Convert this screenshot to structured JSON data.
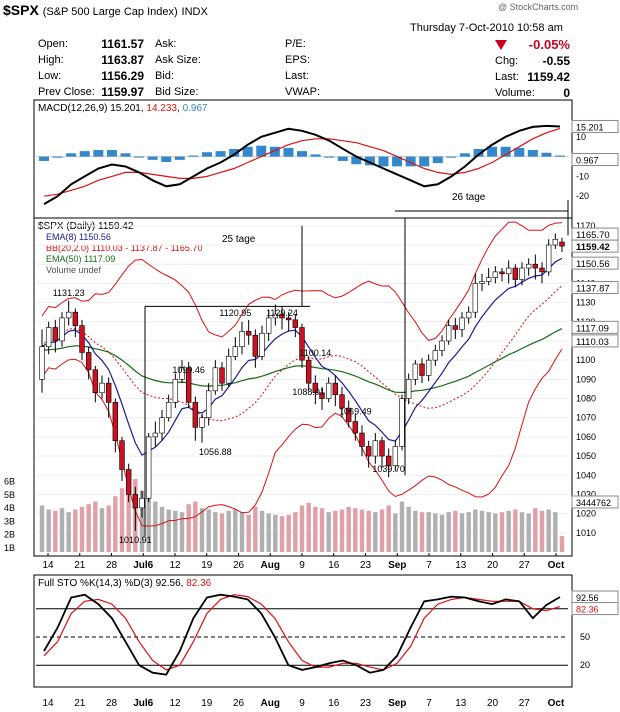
{
  "header": {
    "symbol": "$SPX",
    "name": "(S&P 500 Large Cap Index)",
    "exchange": "INDX",
    "watermark": "@ StockCharts.com",
    "datetime": "Thursday  7-Oct-2010  10:58 am",
    "change_pct": "-0.05%",
    "quotes": [
      {
        "label": "Open:",
        "value": "1161.57"
      },
      {
        "label": "High:",
        "value": "1163.87"
      },
      {
        "label": "Low:",
        "value": "1156.29"
      },
      {
        "label": "Prev Close:",
        "value": "1159.97"
      }
    ],
    "mid_labels": [
      "Ask:",
      "Ask Size:",
      "Bid:",
      "Bid Size:"
    ],
    "right_labels": [
      "P/E:",
      "EPS:",
      "Last:",
      "VWAP:"
    ],
    "stats": [
      {
        "label": "Chg:",
        "value": "-0.55"
      },
      {
        "label": "Last:",
        "value": "1159.42"
      },
      {
        "label": "Volume:",
        "value": "0"
      }
    ]
  },
  "colors": {
    "up": "#ffffff",
    "down": "#cc1122",
    "macd_hist": "#3388cc",
    "ema8": "#1a1a9a",
    "bb": "#dd1111",
    "ema50": "#1a6a1a",
    "volume_gray": "#b0b0b0",
    "volume_red": "#e0a0a8",
    "tag_line": "#000000",
    "sto_k": "#000000",
    "sto_d": "#dd1111",
    "change_neg": "#cc0022"
  },
  "chart_data": [
    {
      "type": "line",
      "panel": "macd",
      "title": "MACD(12,26,9) 15.201, 14.233, 0.967",
      "title_parts": [
        "MACD(12,26,9) ",
        "15.201",
        ", ",
        "14.233",
        ", ",
        "0.967"
      ],
      "ylim": [
        -30,
        22
      ],
      "ticks": [
        10,
        0,
        -10,
        -20
      ],
      "last_values": [
        "15.201",
        "0.967"
      ],
      "macd": [
        -24,
        -20,
        -14,
        -10,
        -6,
        -4,
        -5,
        -8,
        -12,
        -15,
        -14,
        -10,
        -6,
        -3,
        1,
        6,
        10,
        12,
        14,
        13,
        11,
        8,
        4,
        0,
        -3,
        -6,
        -9,
        -12,
        -15,
        -14,
        -10,
        -5,
        1,
        6,
        10,
        13,
        15,
        15.5,
        15.2
      ],
      "signal": [
        -20,
        -19,
        -17,
        -15,
        -12,
        -10,
        -8,
        -8,
        -9,
        -10,
        -11,
        -11,
        -10,
        -8,
        -6,
        -3,
        0,
        3,
        6,
        8,
        9,
        9,
        8,
        7,
        5,
        3,
        0,
        -3,
        -6,
        -8,
        -9,
        -8,
        -6,
        -3,
        1,
        5,
        9,
        12,
        14.2
      ],
      "histogram": [
        -4,
        -1,
        3,
        5,
        6,
        6,
        3,
        0,
        -3,
        -5,
        -3,
        1,
        4,
        5,
        7,
        9,
        10,
        9,
        8,
        5,
        2,
        -1,
        -4,
        -7,
        -8,
        -9,
        -9,
        -9,
        -9,
        -6,
        -1,
        3,
        7,
        9,
        9,
        8,
        6,
        3.5,
        0.967
      ]
    },
    {
      "type": "bar",
      "panel": "price",
      "title": "$SPX (Daily) 1159.42",
      "legend": [
        {
          "text": "EMA(8) 1150.56",
          "color_key": "ema8"
        },
        {
          "text": "BB(20,2.0) 1110.03 - 1137.87 - 1165.70",
          "color_key": "bb"
        },
        {
          "text": "EMA(50) 1117.09",
          "color_key": "ema50"
        },
        {
          "text": "Volume undef",
          "color_key": "volume_gray"
        }
      ],
      "ylim": [
        1000,
        1172
      ],
      "yticks": [
        1170,
        1160,
        1150,
        1140,
        1130,
        1120,
        1110,
        1100,
        1090,
        1080,
        1070,
        1060,
        1050,
        1040,
        1030,
        1020,
        1010
      ],
      "volume_ticks": [
        "6B",
        "5B",
        "4B",
        "3B",
        "2B",
        "1B"
      ],
      "value_tags": [
        {
          "text": "1165.70",
          "value": 1165.7
        },
        {
          "text": "1159.42",
          "value": 1159.42,
          "bold": true
        },
        {
          "text": "1150.56",
          "value": 1150.56
        },
        {
          "text": "1137.87",
          "value": 1137.87
        },
        {
          "text": "1117.09",
          "value": 1117.09
        },
        {
          "text": "1110.03",
          "value": 1110.03
        }
      ],
      "x_labels": [
        "14",
        "21",
        "28",
        "Jul6",
        "12",
        "19",
        "26",
        "Aug",
        "9",
        "16",
        "23",
        "Sep",
        "7",
        "13",
        "20",
        "27",
        "Oct"
      ],
      "annotations": [
        {
          "text": "1131.23",
          "value": 1131.23
        },
        {
          "text": "1099.46",
          "value": 1099.46
        },
        {
          "text": "1120.95",
          "value": 1120.95
        },
        {
          "text": "1129.24",
          "value": 1129.24
        },
        {
          "text": "1100.14",
          "value": 1100.14
        },
        {
          "text": "1088.01",
          "value": 1088.01
        },
        {
          "text": "1069.49",
          "value": 1069.49
        },
        {
          "text": "1056.88",
          "value": 1056.88
        },
        {
          "text": "1039.70",
          "value": 1039.7
        },
        {
          "text": "1010.91",
          "value": 1010.91
        }
      ],
      "tag_notes": [
        "25 tage",
        "26 tage"
      ],
      "candles": [
        [
          1090,
          1107,
          1083,
          1116
        ],
        [
          1107,
          1117,
          1103,
          1120
        ],
        [
          1117,
          1110,
          1104,
          1121
        ],
        [
          1110,
          1122,
          1107,
          1125
        ],
        [
          1122,
          1125,
          1118,
          1131
        ],
        [
          1125,
          1118,
          1112,
          1127
        ],
        [
          1118,
          1104,
          1100,
          1121
        ],
        [
          1104,
          1095,
          1090,
          1107
        ],
        [
          1095,
          1083,
          1078,
          1097
        ],
        [
          1083,
          1088,
          1080,
          1092
        ],
        [
          1088,
          1078,
          1070,
          1091
        ],
        [
          1078,
          1058,
          1052,
          1080
        ],
        [
          1058,
          1043,
          1037,
          1060
        ],
        [
          1043,
          1030,
          1026,
          1046
        ],
        [
          1030,
          1023,
          1011,
          1034
        ],
        [
          1023,
          1028,
          1018,
          1032
        ],
        [
          1028,
          1060,
          1026,
          1062
        ],
        [
          1060,
          1062,
          1055,
          1068
        ],
        [
          1062,
          1070,
          1058,
          1074
        ],
        [
          1070,
          1078,
          1068,
          1082
        ],
        [
          1078,
          1090,
          1075,
          1093
        ],
        [
          1090,
          1096,
          1088,
          1100
        ],
        [
          1096,
          1078,
          1075,
          1099
        ],
        [
          1078,
          1065,
          1058,
          1081
        ],
        [
          1065,
          1070,
          1057,
          1072
        ],
        [
          1070,
          1084,
          1066,
          1088
        ],
        [
          1084,
          1096,
          1082,
          1100
        ],
        [
          1096,
          1088,
          1084,
          1099
        ],
        [
          1088,
          1102,
          1086,
          1106
        ],
        [
          1102,
          1107,
          1100,
          1112
        ],
        [
          1107,
          1115,
          1103,
          1120
        ],
        [
          1115,
          1113,
          1108,
          1121
        ],
        [
          1113,
          1102,
          1096,
          1116
        ],
        [
          1102,
          1114,
          1100,
          1118
        ],
        [
          1114,
          1122,
          1110,
          1126
        ],
        [
          1122,
          1124,
          1118,
          1129
        ],
        [
          1124,
          1122,
          1116,
          1128
        ],
        [
          1122,
          1121,
          1115,
          1125
        ],
        [
          1121,
          1117,
          1112,
          1124
        ],
        [
          1117,
          1100,
          1096,
          1119
        ],
        [
          1100,
          1088,
          1084,
          1102
        ],
        [
          1088,
          1083,
          1077,
          1092
        ],
        [
          1083,
          1080,
          1074,
          1086
        ],
        [
          1080,
          1088,
          1078,
          1091
        ],
        [
          1088,
          1082,
          1076,
          1092
        ],
        [
          1082,
          1075,
          1070,
          1086
        ],
        [
          1075,
          1068,
          1065,
          1079
        ],
        [
          1068,
          1062,
          1058,
          1072
        ],
        [
          1062,
          1055,
          1050,
          1066
        ],
        [
          1055,
          1050,
          1044,
          1058
        ],
        [
          1050,
          1058,
          1046,
          1062
        ],
        [
          1058,
          1050,
          1044,
          1060
        ],
        [
          1050,
          1045,
          1039,
          1054
        ],
        [
          1045,
          1055,
          1042,
          1058
        ],
        [
          1055,
          1080,
          1053,
          1082
        ],
        [
          1080,
          1090,
          1077,
          1093
        ],
        [
          1090,
          1098,
          1087,
          1100
        ],
        [
          1098,
          1092,
          1088,
          1101
        ],
        [
          1092,
          1100,
          1089,
          1103
        ],
        [
          1100,
          1105,
          1097,
          1108
        ],
        [
          1105,
          1110,
          1102,
          1113
        ],
        [
          1110,
          1118,
          1108,
          1121
        ],
        [
          1118,
          1116,
          1111,
          1122
        ],
        [
          1116,
          1122,
          1112,
          1125
        ],
        [
          1122,
          1125,
          1119,
          1128
        ],
        [
          1125,
          1140,
          1122,
          1145
        ],
        [
          1140,
          1141,
          1136,
          1145
        ],
        [
          1141,
          1143,
          1139,
          1148
        ],
        [
          1143,
          1146,
          1140,
          1149
        ],
        [
          1146,
          1145,
          1141,
          1148
        ],
        [
          1145,
          1148,
          1140,
          1152
        ],
        [
          1148,
          1142,
          1138,
          1150
        ],
        [
          1142,
          1148,
          1139,
          1151
        ],
        [
          1148,
          1150,
          1144,
          1153
        ],
        [
          1150,
          1148,
          1142,
          1155
        ],
        [
          1148,
          1146,
          1140,
          1151
        ],
        [
          1146,
          1160,
          1144,
          1163
        ],
        [
          1160,
          1163,
          1158,
          1166
        ],
        [
          1161.57,
          1159.42,
          1156.29,
          1163.87
        ]
      ],
      "volume": [
        3.5,
        3.2,
        3.1,
        3.3,
        3.0,
        3.2,
        3.4,
        3.6,
        3.8,
        3.3,
        3.5,
        4.2,
        4.8,
        5.2,
        5.5,
        4.6,
        4.4,
        3.8,
        3.4,
        3.2,
        3.1,
        3.0,
        3.6,
        3.8,
        3.3,
        3.2,
        3.0,
        2.9,
        3.1,
        3.2,
        3.0,
        2.8,
        3.4,
        3.1,
        2.9,
        2.8,
        2.7,
        2.8,
        3.0,
        3.5,
        3.7,
        3.4,
        3.3,
        3.0,
        3.1,
        3.2,
        3.4,
        3.3,
        3.2,
        3.1,
        3.0,
        3.2,
        3.5,
        2.9,
        3.8,
        3.4,
        3.1,
        3.0,
        3.0,
        2.9,
        2.8,
        3.0,
        3.1,
        2.9,
        3.0,
        3.2,
        3.1,
        3.0,
        2.9,
        3.0,
        3.1,
        3.2,
        3.0,
        2.9,
        3.3,
        3.1,
        3.2,
        3.0,
        1.2
      ],
      "volume_last": "3444762"
    },
    {
      "type": "line",
      "panel": "sto",
      "title": "Full STO %K(14,3) %D(3) 92.56, 82.36",
      "title_parts": [
        "Full STO %K(14,3) %D(3) ",
        "92.56",
        ", ",
        "82.36"
      ],
      "ylim": [
        0,
        100
      ],
      "ticks": [
        80,
        50,
        20
      ],
      "last_values": [
        "92.56",
        "82.36"
      ],
      "k": [
        35,
        60,
        92,
        95,
        85,
        70,
        45,
        20,
        12,
        10,
        35,
        70,
        92,
        95,
        93,
        90,
        75,
        50,
        20,
        15,
        18,
        22,
        25,
        20,
        12,
        15,
        30,
        60,
        88,
        90,
        93,
        92,
        88,
        85,
        90,
        88,
        70,
        84,
        92.56
      ],
      "d": [
        30,
        45,
        75,
        88,
        90,
        85,
        70,
        45,
        25,
        15,
        20,
        45,
        75,
        90,
        95,
        93,
        85,
        70,
        45,
        25,
        18,
        18,
        22,
        22,
        18,
        15,
        22,
        40,
        70,
        85,
        90,
        92,
        90,
        88,
        88,
        88,
        80,
        78,
        82.36
      ]
    }
  ]
}
